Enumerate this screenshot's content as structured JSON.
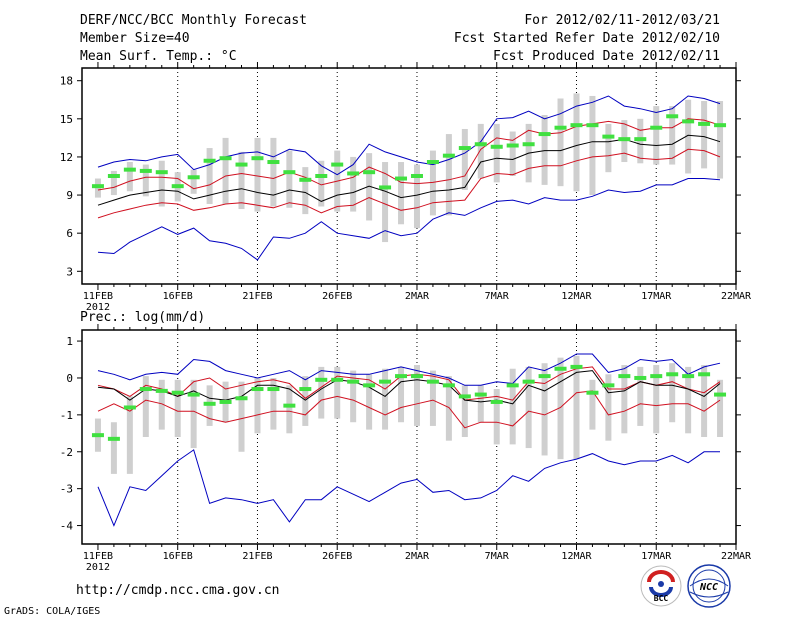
{
  "header": {
    "title": "DERF/NCC/BCC Monthly Forecast",
    "member": "Member Size=40",
    "variable": "Mean Surf. Temp.: °C",
    "period": "For 2012/02/11-2012/03/21",
    "started": "Fcst Started Refer Date 2012/02/10",
    "produced": "Fcst Produced Date 2012/02/11"
  },
  "footer": {
    "url": "http://cmdp.ncc.cma.gov.cn",
    "grads": "GrADS: COLA/IGES",
    "logo_bcc": "BCC",
    "logo_ncc": "NCC"
  },
  "colors": {
    "mean": "#000000",
    "spread": "#d01020",
    "extreme": "#0000c0",
    "box": "#cfcfcf",
    "marker": "#40e040",
    "frame": "#000000"
  },
  "chart_data": [
    {
      "type": "line",
      "title": "Mean Surf. Temp.: °C",
      "xlabel": "",
      "ylabel": "",
      "x_start_year": "2012",
      "x_tick_labels": [
        "11FEB",
        "16FEB",
        "21FEB",
        "26FEB",
        "2MAR",
        "7MAR",
        "12MAR",
        "17MAR",
        "22MAR"
      ],
      "x_tick_days": [
        1,
        6,
        11,
        16,
        21,
        26,
        31,
        36,
        41
      ],
      "ylim": [
        2,
        19
      ],
      "yticks": [
        3,
        6,
        9,
        12,
        15,
        18
      ],
      "days": [
        1,
        2,
        3,
        4,
        5,
        6,
        7,
        8,
        9,
        10,
        11,
        12,
        13,
        14,
        15,
        16,
        17,
        18,
        19,
        20,
        21,
        22,
        23,
        24,
        25,
        26,
        27,
        28,
        29,
        30,
        31,
        32,
        33,
        34,
        35,
        36,
        37,
        38,
        39,
        40
      ],
      "series": [
        {
          "name": "max",
          "values": [
            11.2,
            11.6,
            11.8,
            11.7,
            12.0,
            12.2,
            11.0,
            11.4,
            12.0,
            12.3,
            12.4,
            12.0,
            12.6,
            12.4,
            11.3,
            10.6,
            11.4,
            13.0,
            12.4,
            12.0,
            11.6,
            11.4,
            11.8,
            12.3,
            13.2,
            15.0,
            15.1,
            15.6,
            15.0,
            15.4,
            16.0,
            16.3,
            16.8,
            16.0,
            15.8,
            15.5,
            15.8,
            16.8,
            16.6,
            16.2
          ]
        },
        {
          "name": "upper",
          "values": [
            9.4,
            9.6,
            10.1,
            10.4,
            10.4,
            10.3,
            9.5,
            9.8,
            10.5,
            10.7,
            10.5,
            10.3,
            10.8,
            10.4,
            9.8,
            10.1,
            10.4,
            11.2,
            10.7,
            10.0,
            9.9,
            10.0,
            10.2,
            10.5,
            12.6,
            13.5,
            13.3,
            14.1,
            13.8,
            13.9,
            14.4,
            14.6,
            14.8,
            14.6,
            14.1,
            14.3,
            14.3,
            15.0,
            14.9,
            14.5
          ]
        },
        {
          "name": "mean",
          "values": [
            8.2,
            8.6,
            9.0,
            9.2,
            9.4,
            9.3,
            8.7,
            9.0,
            9.3,
            9.5,
            9.2,
            9.0,
            9.4,
            9.2,
            8.5,
            9.0,
            9.2,
            9.7,
            9.3,
            8.8,
            9.0,
            9.3,
            9.4,
            9.6,
            11.6,
            11.9,
            11.8,
            12.3,
            12.5,
            12.5,
            12.9,
            13.2,
            13.2,
            13.4,
            13.0,
            12.9,
            13.0,
            13.7,
            13.6,
            13.2
          ]
        },
        {
          "name": "lower",
          "values": [
            7.2,
            7.6,
            7.9,
            8.2,
            8.4,
            8.3,
            7.8,
            8.0,
            8.3,
            8.4,
            8.2,
            8.0,
            8.4,
            8.2,
            7.6,
            8.1,
            8.2,
            8.8,
            8.3,
            7.8,
            8.0,
            8.4,
            8.5,
            8.6,
            10.3,
            10.7,
            10.6,
            11.1,
            11.3,
            11.3,
            11.7,
            12.0,
            12.1,
            12.3,
            11.9,
            11.8,
            11.9,
            12.6,
            12.5,
            12.0
          ]
        },
        {
          "name": "min",
          "values": [
            4.5,
            4.4,
            5.3,
            5.9,
            6.5,
            5.9,
            6.4,
            5.4,
            5.2,
            4.8,
            3.9,
            5.7,
            5.6,
            6.0,
            6.9,
            6.0,
            5.8,
            5.6,
            6.2,
            5.8,
            6.0,
            7.1,
            7.6,
            7.4,
            8.0,
            8.5,
            8.6,
            8.3,
            8.8,
            8.6,
            8.6,
            8.9,
            9.4,
            9.2,
            9.3,
            9.8,
            9.8,
            10.3,
            10.3,
            10.2
          ]
        },
        {
          "name": "marker",
          "values": [
            9.7,
            10.5,
            11.0,
            10.9,
            10.8,
            9.7,
            10.4,
            11.7,
            11.9,
            11.4,
            11.9,
            11.6,
            10.8,
            10.2,
            10.5,
            11.4,
            10.7,
            10.8,
            9.6,
            10.3,
            10.5,
            11.6,
            12.1,
            12.7,
            13.0,
            12.8,
            12.9,
            13.0,
            13.8,
            14.3,
            14.5,
            14.5,
            13.6,
            13.4,
            13.4,
            14.3,
            15.2,
            14.8,
            14.6,
            14.5
          ]
        },
        {
          "name": "box_high",
          "values": [
            10.3,
            10.9,
            11.6,
            11.4,
            11.7,
            10.8,
            11.0,
            12.7,
            13.5,
            12.4,
            13.5,
            13.5,
            12.5,
            11.2,
            11.7,
            12.5,
            12.0,
            12.3,
            11.6,
            11.6,
            11.4,
            12.5,
            13.8,
            14.2,
            14.6,
            14.6,
            14.0,
            14.6,
            15.3,
            16.6,
            17.0,
            16.8,
            14.6,
            14.9,
            15.0,
            16.0,
            16.0,
            16.5,
            16.4,
            16.4
          ]
        },
        {
          "name": "box_low",
          "values": [
            8.8,
            9.0,
            9.3,
            8.9,
            8.1,
            8.5,
            9.1,
            8.3,
            8.3,
            7.9,
            7.7,
            8.1,
            8.0,
            7.5,
            8.1,
            7.7,
            7.7,
            7.0,
            5.3,
            6.7,
            6.4,
            7.4,
            7.4,
            9.4,
            10.3,
            10.0,
            10.5,
            10.0,
            9.8,
            9.7,
            9.3,
            9.0,
            10.8,
            11.6,
            11.5,
            11.4,
            11.4,
            10.7,
            11.1,
            10.3
          ]
        }
      ]
    },
    {
      "type": "line",
      "title": "Prec.: log(mm/d)",
      "xlabel": "",
      "ylabel": "",
      "x_start_year": "2012",
      "x_tick_labels": [
        "11FEB",
        "16FEB",
        "21FEB",
        "26FEB",
        "2MAR",
        "7MAR",
        "12MAR",
        "17MAR",
        "22MAR"
      ],
      "x_tick_days": [
        1,
        6,
        11,
        16,
        21,
        26,
        31,
        36,
        41
      ],
      "ylim": [
        -4.5,
        1.3
      ],
      "yticks": [
        1,
        0,
        -1,
        -2,
        -3,
        -4
      ],
      "days": [
        1,
        2,
        3,
        4,
        5,
        6,
        7,
        8,
        9,
        10,
        11,
        12,
        13,
        14,
        15,
        16,
        17,
        18,
        19,
        20,
        21,
        22,
        23,
        24,
        25,
        26,
        27,
        28,
        29,
        30,
        31,
        32,
        33,
        34,
        35,
        36,
        37,
        38,
        39,
        40
      ],
      "series": [
        {
          "name": "max",
          "values": [
            0.2,
            0.1,
            -0.05,
            0.1,
            0.15,
            0.1,
            0.5,
            0.45,
            0.2,
            0.1,
            0.0,
            0.1,
            0.2,
            -0.05,
            0.2,
            0.15,
            0.1,
            0.1,
            0.2,
            0.3,
            0.2,
            0.1,
            0.0,
            -0.2,
            -0.2,
            -0.1,
            -0.15,
            0.3,
            0.2,
            0.4,
            0.65,
            0.65,
            0.15,
            0.25,
            0.5,
            0.45,
            0.5,
            0.1,
            0.3,
            0.4
          ]
        },
        {
          "name": "upper",
          "values": [
            -0.2,
            -0.3,
            -0.5,
            -0.2,
            -0.3,
            -0.5,
            -0.1,
            0.0,
            -0.3,
            -0.2,
            -0.1,
            -0.05,
            -0.15,
            -0.55,
            -0.25,
            0.05,
            0.0,
            -0.05,
            -0.3,
            0.05,
            0.1,
            0.05,
            -0.05,
            -0.6,
            -0.55,
            -0.5,
            -0.6,
            -0.1,
            -0.15,
            0.1,
            0.25,
            0.3,
            -0.3,
            -0.3,
            -0.1,
            -0.2,
            -0.1,
            -0.3,
            -0.4,
            -0.1
          ]
        },
        {
          "name": "mean",
          "values": [
            -0.25,
            -0.3,
            -0.6,
            -0.3,
            -0.35,
            -0.5,
            -0.35,
            -0.55,
            -0.6,
            -0.5,
            -0.2,
            -0.2,
            -0.3,
            -0.6,
            -0.3,
            -0.05,
            -0.1,
            -0.25,
            -0.5,
            -0.1,
            -0.05,
            -0.1,
            -0.2,
            -0.6,
            -0.65,
            -0.6,
            -0.7,
            -0.2,
            -0.35,
            -0.1,
            0.15,
            0.2,
            -0.4,
            -0.35,
            -0.1,
            -0.2,
            -0.2,
            -0.3,
            -0.5,
            -0.15
          ]
        },
        {
          "name": "lower",
          "values": [
            -0.9,
            -0.7,
            -0.9,
            -0.6,
            -0.7,
            -0.9,
            -0.9,
            -1.1,
            -1.2,
            -1.1,
            -1.0,
            -0.9,
            -0.9,
            -1.0,
            -0.6,
            -0.5,
            -0.6,
            -0.8,
            -1.0,
            -0.8,
            -0.7,
            -0.6,
            -0.8,
            -1.35,
            -1.2,
            -1.2,
            -1.3,
            -0.9,
            -1.0,
            -0.8,
            -0.4,
            -0.35,
            -1.0,
            -0.9,
            -0.7,
            -0.75,
            -0.7,
            -0.7,
            -0.9,
            -0.6
          ]
        },
        {
          "name": "min",
          "values": [
            -2.95,
            -4.0,
            -2.95,
            -3.05,
            -2.65,
            -2.25,
            -1.95,
            -3.4,
            -3.25,
            -3.3,
            -3.4,
            -3.3,
            -3.9,
            -3.3,
            -3.3,
            -2.95,
            -3.15,
            -3.35,
            -3.1,
            -2.85,
            -2.75,
            -3.1,
            -3.05,
            -3.3,
            -3.25,
            -3.05,
            -2.65,
            -2.8,
            -2.45,
            -2.3,
            -2.2,
            -2.05,
            -2.25,
            -2.35,
            -2.25,
            -2.25,
            -2.1,
            -2.3,
            -2.0,
            -2.0
          ]
        },
        {
          "name": "marker",
          "values": [
            -1.55,
            -1.65,
            -0.8,
            -0.3,
            -0.35,
            -0.4,
            -0.45,
            -0.7,
            -0.65,
            -0.55,
            -0.3,
            -0.3,
            -0.75,
            -0.3,
            -0.05,
            -0.05,
            -0.1,
            -0.2,
            -0.1,
            0.05,
            0.05,
            -0.1,
            -0.2,
            -0.5,
            -0.45,
            -0.65,
            -0.2,
            -0.1,
            0.05,
            0.25,
            0.3,
            -0.4,
            -0.2,
            0.05,
            0.0,
            0.05,
            0.1,
            0.05,
            0.1,
            -0.45
          ]
        },
        {
          "name": "box_high",
          "values": [
            -1.1,
            -1.2,
            -0.5,
            0.05,
            -0.05,
            -0.05,
            -0.05,
            -0.2,
            -0.1,
            -0.1,
            0.0,
            0.0,
            -0.2,
            0.05,
            0.3,
            0.3,
            0.2,
            0.1,
            0.25,
            0.3,
            0.35,
            0.2,
            0.05,
            -0.2,
            -0.2,
            -0.3,
            0.25,
            0.3,
            0.4,
            0.55,
            0.6,
            -0.05,
            0.1,
            0.35,
            0.3,
            0.35,
            0.4,
            0.3,
            0.35,
            -0.05
          ]
        },
        {
          "name": "box_low",
          "values": [
            -2.0,
            -2.6,
            -2.6,
            -1.6,
            -1.4,
            -1.6,
            -1.9,
            -1.3,
            -1.2,
            -2.0,
            -1.5,
            -1.4,
            -1.5,
            -1.3,
            -1.1,
            -1.1,
            -1.2,
            -1.4,
            -1.4,
            -1.2,
            -1.3,
            -1.3,
            -1.7,
            -1.6,
            -1.2,
            -1.8,
            -1.8,
            -1.9,
            -2.1,
            -2.2,
            -2.2,
            -1.4,
            -1.7,
            -1.5,
            -1.3,
            -1.5,
            -1.2,
            -1.5,
            -1.6,
            -1.6
          ]
        }
      ]
    }
  ]
}
